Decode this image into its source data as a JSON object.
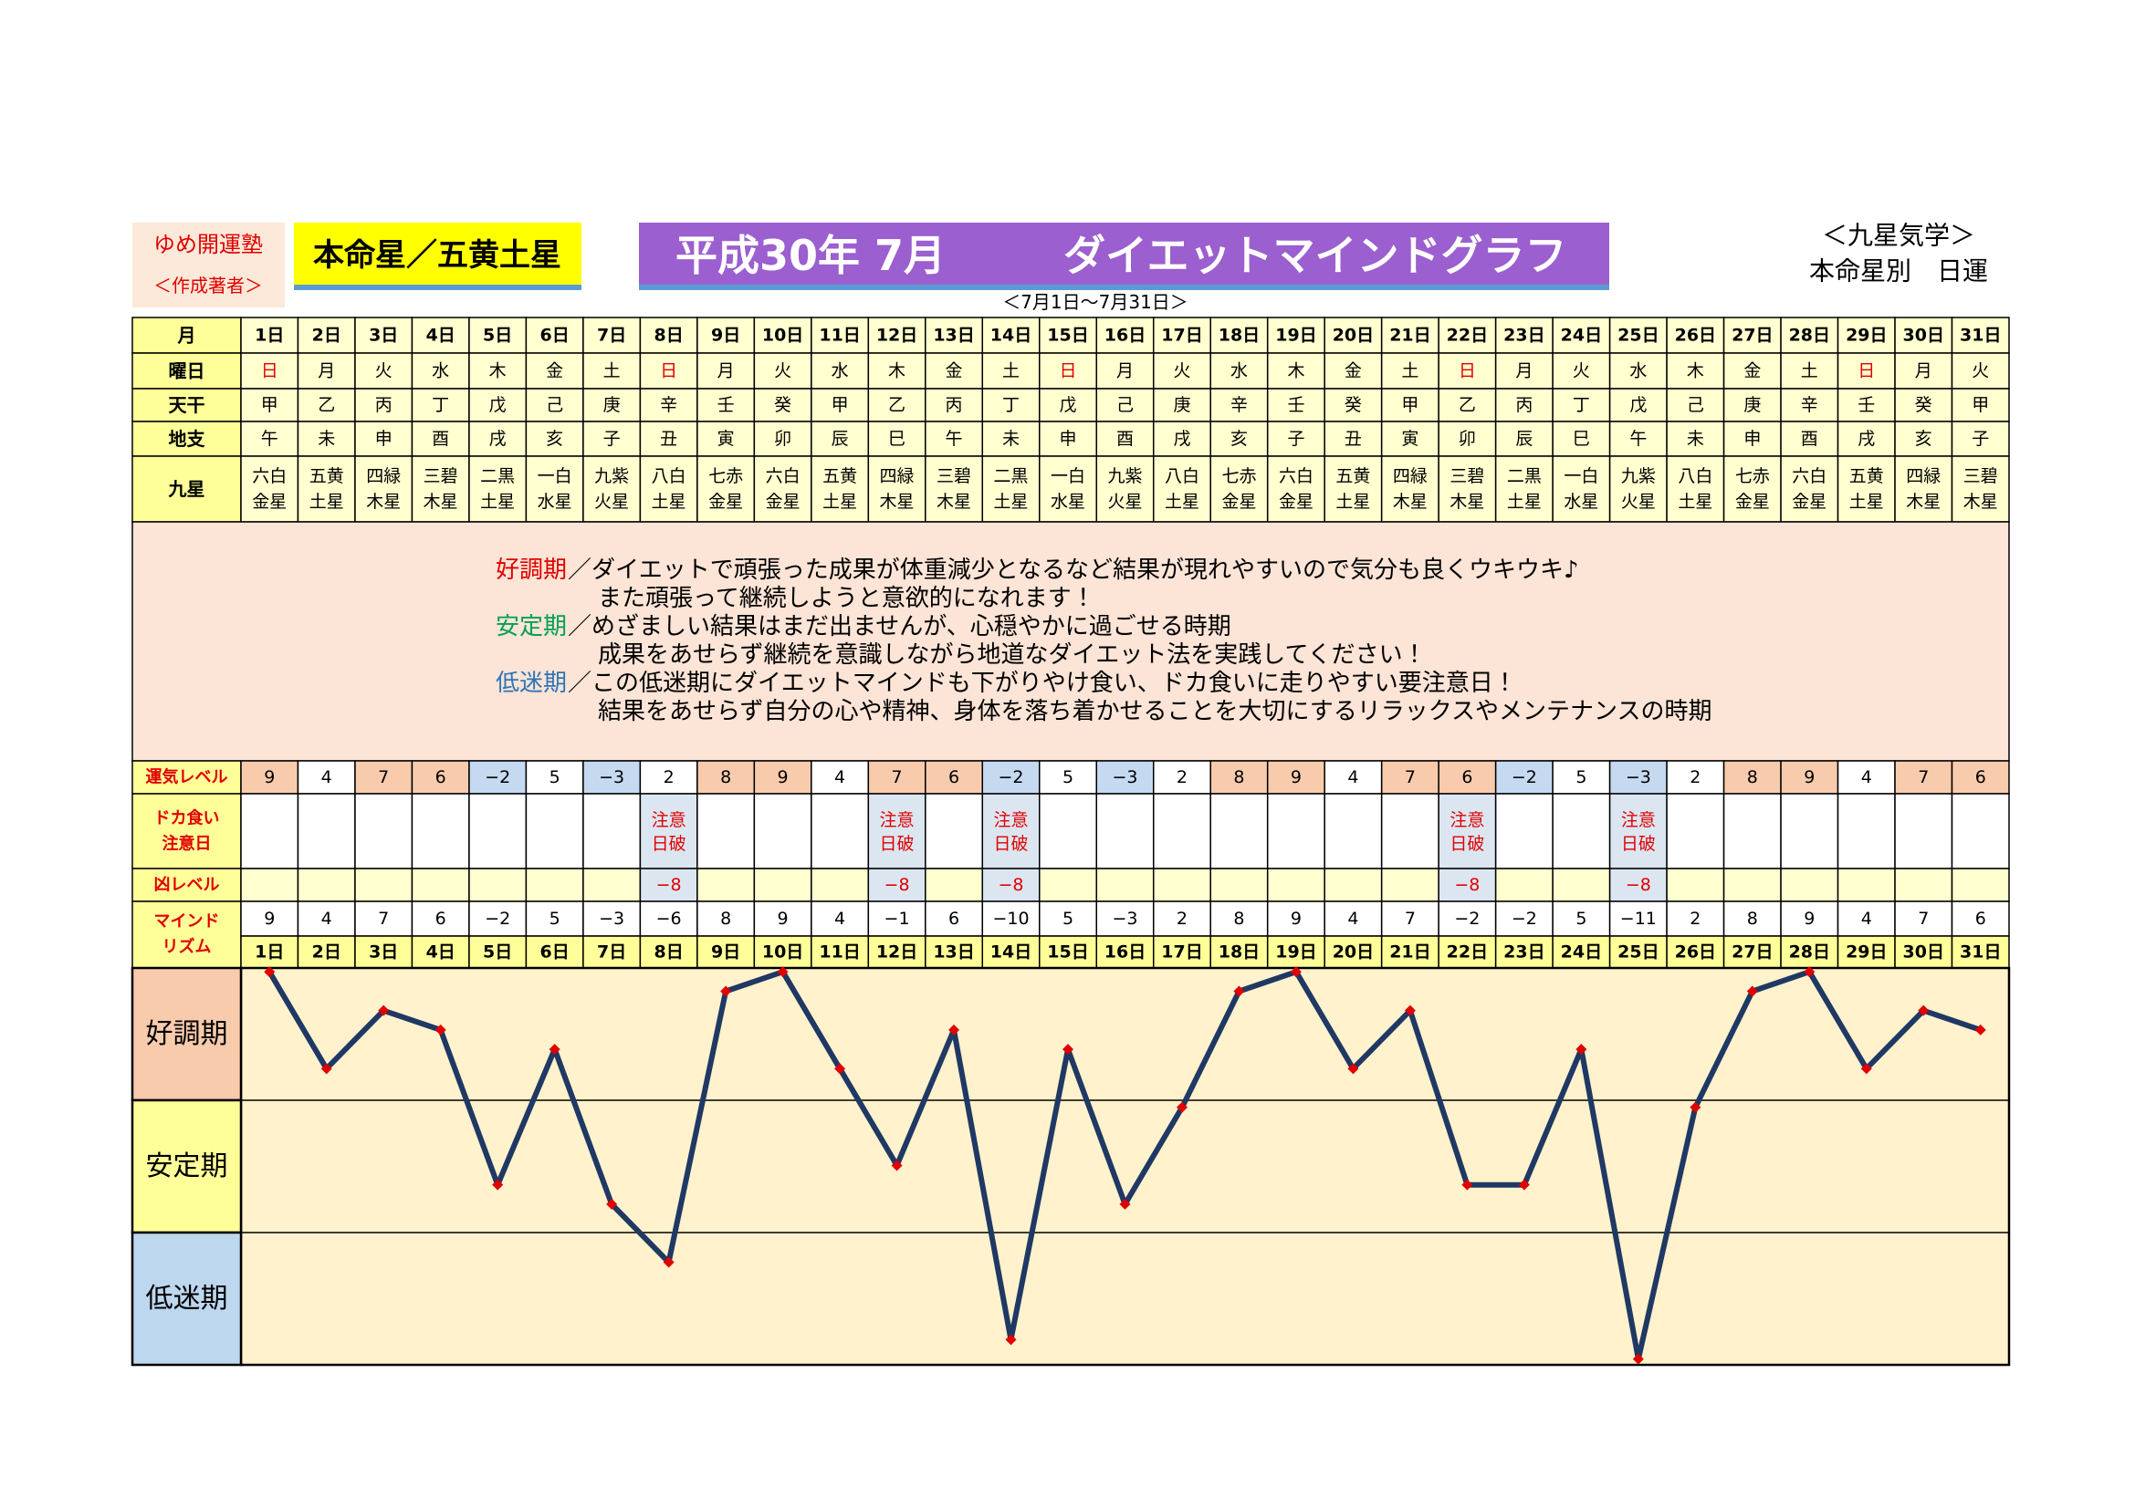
{
  "header": {
    "school": "ゆめ開運塾",
    "author": "＜作成著者＞",
    "star": "本命星／五黄土星",
    "date": "平成30年 7月",
    "title": "ダイエットマインドグラフ",
    "system": "＜九星気学＞",
    "subtitle": "本命星別　日運",
    "period": "＜7月1日～7月31日＞"
  },
  "table": {
    "row_labels": {
      "month": "月",
      "weekday": "曜日",
      "stem": "天干",
      "branch": "地支",
      "star": "九星",
      "fortune": "運気レベル",
      "warning": [
        "ドカ食い",
        "注意日"
      ],
      "bad": "凶レベル",
      "mind": [
        "マインド",
        "リズム"
      ]
    },
    "days": [
      "1日",
      "2日",
      "3日",
      "4日",
      "5日",
      "6日",
      "7日",
      "8日",
      "9日",
      "10日",
      "11日",
      "12日",
      "13日",
      "14日",
      "15日",
      "16日",
      "17日",
      "18日",
      "19日",
      "20日",
      "21日",
      "22日",
      "23日",
      "24日",
      "25日",
      "26日",
      "27日",
      "28日",
      "29日",
      "30日",
      "31日"
    ],
    "weekdays": [
      "日",
      "月",
      "火",
      "水",
      "木",
      "金",
      "土",
      "日",
      "月",
      "火",
      "水",
      "木",
      "金",
      "土",
      "日",
      "月",
      "火",
      "水",
      "木",
      "金",
      "土",
      "日",
      "月",
      "火",
      "水",
      "木",
      "金",
      "土",
      "日",
      "月",
      "火"
    ],
    "stems": [
      "甲",
      "乙",
      "丙",
      "丁",
      "戊",
      "己",
      "庚",
      "辛",
      "壬",
      "癸",
      "甲",
      "乙",
      "丙",
      "丁",
      "戊",
      "己",
      "庚",
      "辛",
      "壬",
      "癸",
      "甲",
      "乙",
      "丙",
      "丁",
      "戊",
      "己",
      "庚",
      "辛",
      "壬",
      "癸",
      "甲"
    ],
    "branches": [
      "午",
      "未",
      "申",
      "酉",
      "戌",
      "亥",
      "子",
      "丑",
      "寅",
      "卯",
      "辰",
      "巳",
      "午",
      "未",
      "申",
      "酉",
      "戌",
      "亥",
      "子",
      "丑",
      "寅",
      "卯",
      "辰",
      "巳",
      "午",
      "未",
      "申",
      "酉",
      "戌",
      "亥",
      "子"
    ],
    "stars": [
      [
        "六白",
        "金星"
      ],
      [
        "五黄",
        "土星"
      ],
      [
        "四緑",
        "木星"
      ],
      [
        "三碧",
        "木星"
      ],
      [
        "二黒",
        "土星"
      ],
      [
        "一白",
        "水星"
      ],
      [
        "九紫",
        "火星"
      ],
      [
        "八白",
        "土星"
      ],
      [
        "七赤",
        "金星"
      ],
      [
        "六白",
        "金星"
      ],
      [
        "五黄",
        "土星"
      ],
      [
        "四緑",
        "木星"
      ],
      [
        "三碧",
        "木星"
      ],
      [
        "二黒",
        "土星"
      ],
      [
        "一白",
        "水星"
      ],
      [
        "九紫",
        "火星"
      ],
      [
        "八白",
        "土星"
      ],
      [
        "七赤",
        "金星"
      ],
      [
        "六白",
        "金星"
      ],
      [
        "五黄",
        "土星"
      ],
      [
        "四緑",
        "木星"
      ],
      [
        "三碧",
        "木星"
      ],
      [
        "二黒",
        "土星"
      ],
      [
        "一白",
        "水星"
      ],
      [
        "九紫",
        "火星"
      ],
      [
        "八白",
        "土星"
      ],
      [
        "七赤",
        "金星"
      ],
      [
        "六白",
        "金星"
      ],
      [
        "五黄",
        "土星"
      ],
      [
        "四緑",
        "木星"
      ],
      [
        "三碧",
        "木星"
      ]
    ],
    "description": [
      {
        "label": "好調期",
        "lines": [
          "／ダイエットで頑張った成果が体重減少となるなど結果が現れやすいので気分も良くウキウキ♪",
          "また頑張って継続しようと意欲的になれます！"
        ]
      },
      {
        "label": "安定期",
        "lines": [
          "／めざましい結果はまだ出ませんが、心穏やかに過ごせる時期",
          "成果をあせらず継続を意識しながら地道なダイエット法を実践してください！"
        ]
      },
      {
        "label": "低迷期",
        "lines": [
          "／この低迷期にダイエットマインドも下がりやけ食い、ドカ食いに走りやすい要注意日！",
          "結果をあせらず自分の心や精神、身体を落ち着かせることを大切にするリラックスやメンテナンスの時期"
        ]
      }
    ],
    "fortune": {
      "labels": [
        "9",
        "4",
        "7",
        "6",
        "−2",
        "5",
        "−3",
        "2",
        "8",
        "9",
        "4",
        "7",
        "6",
        "−2",
        "5",
        "−3",
        "2",
        "8",
        "9",
        "4",
        "7",
        "6",
        "−2",
        "5",
        "−3",
        "2",
        "8",
        "9",
        "4",
        "7",
        "6"
      ],
      "colors": [
        "#f8cbad",
        "#ffffff",
        "#f8cbad",
        "#f8cbad",
        "#c5d9f1",
        "#ffffff",
        "#c5d9f1",
        "#ffffff",
        "#f8cbad",
        "#f8cbad",
        "#ffffff",
        "#f8cbad",
        "#f8cbad",
        "#c5d9f1",
        "#ffffff",
        "#c5d9f1",
        "#ffffff",
        "#f8cbad",
        "#f8cbad",
        "#ffffff",
        "#f8cbad",
        "#f8cbad",
        "#c5d9f1",
        "#ffffff",
        "#c5d9f1",
        "#ffffff",
        "#f8cbad",
        "#f8cbad",
        "#ffffff",
        "#f8cbad",
        "#f8cbad"
      ]
    },
    "warning": [
      null,
      null,
      null,
      null,
      null,
      null,
      null,
      [
        "注意",
        "日破"
      ],
      null,
      null,
      null,
      [
        "注意",
        "日破"
      ],
      null,
      [
        "注意",
        "日破"
      ],
      null,
      null,
      null,
      null,
      null,
      null,
      null,
      [
        "注意",
        "日破"
      ],
      null,
      null,
      [
        "注意",
        "日破"
      ],
      null,
      null,
      null,
      null,
      null,
      null
    ],
    "bad": [
      null,
      null,
      null,
      null,
      null,
      null,
      null,
      "−8",
      null,
      null,
      null,
      "−8",
      null,
      "−8",
      null,
      null,
      null,
      null,
      null,
      null,
      null,
      "−8",
      null,
      null,
      "−8",
      null,
      null,
      null,
      null,
      null,
      null
    ]
  },
  "chart_data": {
    "type": "line",
    "categories": [
      "1日",
      "2日",
      "3日",
      "4日",
      "5日",
      "6日",
      "7日",
      "8日",
      "9日",
      "10日",
      "11日",
      "12日",
      "13日",
      "14日",
      "15日",
      "16日",
      "17日",
      "18日",
      "19日",
      "20日",
      "21日",
      "22日",
      "23日",
      "24日",
      "25日",
      "26日",
      "27日",
      "28日",
      "29日",
      "30日",
      "31日"
    ],
    "series": [
      {
        "color": "#1f3864",
        "marker_color": "#e00000",
        "values": [
          9,
          4,
          7,
          6,
          -2,
          5,
          -3,
          -6,
          8,
          9,
          4,
          -1,
          6,
          -10,
          5,
          -3,
          2,
          8,
          9,
          4,
          7,
          -2,
          -2,
          5,
          -11,
          2,
          8,
          9,
          4,
          7,
          6
        ],
        "value_labels": [
          "9",
          "4",
          "7",
          "6",
          "−2",
          "5",
          "−3",
          "−6",
          "8",
          "9",
          "4",
          "−1",
          "6",
          "−10",
          "5",
          "−3",
          "2",
          "8",
          "9",
          "4",
          "7",
          "−2",
          "−2",
          "5",
          "−11",
          "2",
          "8",
          "9",
          "4",
          "7",
          "6"
        ]
      }
    ],
    "bands": [
      "好調期",
      "安定期",
      "低迷期"
    ],
    "band_colors": [
      "#f8cbad",
      "#ffff99",
      "#bdd7ee"
    ],
    "ylim": [
      -11.3,
      9.2
    ]
  }
}
